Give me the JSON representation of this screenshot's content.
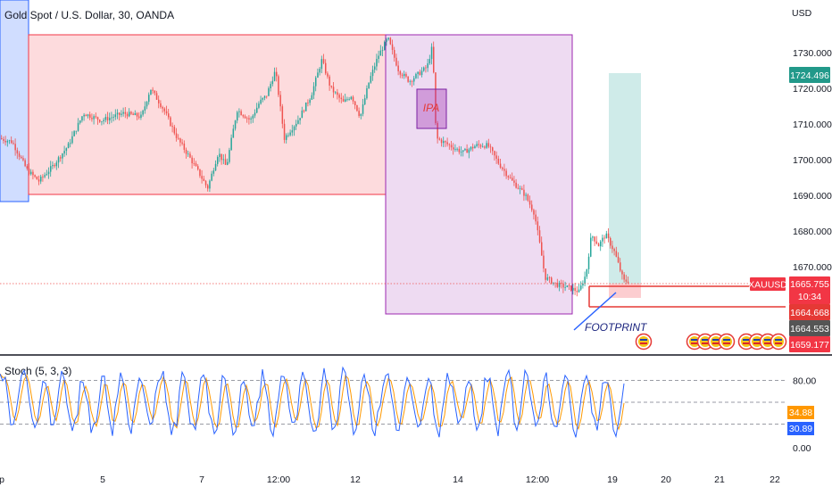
{
  "chart_data": {
    "type": "candlestick",
    "title": "Gold Spot / U.S. Dollar, 30, OANDA",
    "symbol": "XAUUSD",
    "currency": "USD",
    "y_axis": {
      "ticks": [
        "1730.000",
        "1720.000",
        "1710.000",
        "1700.000",
        "1690.000",
        "1680.000",
        "1670.000"
      ],
      "tick_values": [
        1730,
        1720,
        1710,
        1700,
        1690,
        1680,
        1670
      ]
    },
    "x_axis": {
      "ticks": [
        "p",
        "5",
        "7",
        "12:00",
        "12",
        "14",
        "12:00",
        "19",
        "20",
        "21",
        "22"
      ]
    },
    "price_waypoints": [
      [
        0,
        1706
      ],
      [
        15,
        1705
      ],
      [
        32,
        1697
      ],
      [
        45,
        1694
      ],
      [
        60,
        1698
      ],
      [
        78,
        1704
      ],
      [
        95,
        1713
      ],
      [
        115,
        1711
      ],
      [
        140,
        1713
      ],
      [
        160,
        1712
      ],
      [
        170,
        1720
      ],
      [
        185,
        1714
      ],
      [
        200,
        1706
      ],
      [
        213,
        1701
      ],
      [
        225,
        1696
      ],
      [
        234,
        1692
      ],
      [
        246,
        1702
      ],
      [
        255,
        1698
      ],
      [
        267,
        1714
      ],
      [
        282,
        1711
      ],
      [
        292,
        1716
      ],
      [
        300,
        1718
      ],
      [
        310,
        1725
      ],
      [
        320,
        1706
      ],
      [
        335,
        1711
      ],
      [
        350,
        1718
      ],
      [
        362,
        1728
      ],
      [
        372,
        1720
      ],
      [
        386,
        1716
      ],
      [
        395,
        1718
      ],
      [
        405,
        1712
      ],
      [
        415,
        1722
      ],
      [
        425,
        1729
      ],
      [
        436,
        1734
      ],
      [
        448,
        1725
      ],
      [
        460,
        1722
      ],
      [
        470,
        1724
      ],
      [
        480,
        1726
      ],
      [
        486,
        1732
      ],
      [
        490,
        1706
      ],
      [
        505,
        1704
      ],
      [
        520,
        1702
      ],
      [
        535,
        1704
      ],
      [
        548,
        1704
      ],
      [
        560,
        1699
      ],
      [
        575,
        1694
      ],
      [
        590,
        1690
      ],
      [
        600,
        1685
      ],
      [
        607,
        1675
      ],
      [
        612,
        1667
      ],
      [
        625,
        1665
      ],
      [
        640,
        1664
      ],
      [
        650,
        1663
      ],
      [
        658,
        1668
      ],
      [
        664,
        1679
      ],
      [
        672,
        1676
      ],
      [
        680,
        1679
      ],
      [
        690,
        1674
      ],
      [
        700,
        1666
      ],
      [
        705,
        1666
      ]
    ],
    "last_price": "1665.755",
    "countdown": "10:34",
    "levels": [
      {
        "label": "1724.496",
        "color": "#22998a"
      },
      {
        "label": "1664.668",
        "color": "#e53935"
      },
      {
        "label": "1664.553",
        "color": "#555555"
      },
      {
        "label": "1659.177",
        "color": "#f23645"
      }
    ],
    "annotations": {
      "box_label": "IPA",
      "footprint_label": "FOOTPRINT"
    },
    "stochastic": {
      "title": "Stoch (5, 3, 3)",
      "ticks": [
        "80.00",
        "0.00"
      ],
      "k_value": "34.88",
      "d_value": "30.89",
      "k_color": "#2962ff",
      "d_color": "#ff9800",
      "upper_band": 80,
      "mid_band": 50,
      "lower_band": 20
    },
    "colors": {
      "up": "#26a69a",
      "down": "#ef5350",
      "red_zone": "#f23645",
      "purple_zone": "#9c27b0",
      "blue_zone": "#2962ff",
      "green_zone": "#26a69a"
    }
  }
}
